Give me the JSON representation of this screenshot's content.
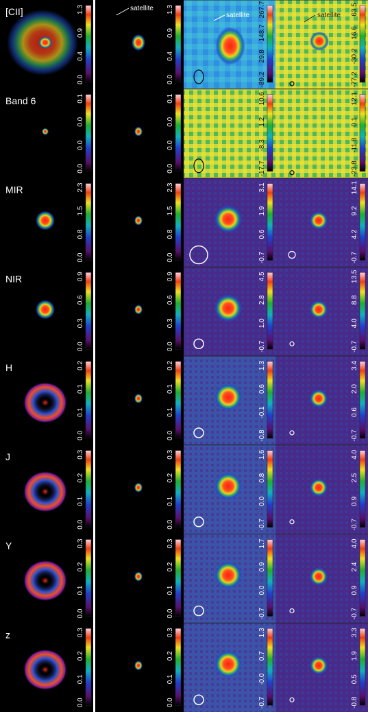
{
  "rows": [
    {
      "label": "[CII]",
      "colorbars": [
        [
          "0.0",
          "0.4",
          "0.9",
          "1.3"
        ],
        [
          "0.0",
          "0.4",
          "0.9",
          "1.3"
        ],
        [
          "-89.2",
          "29.8",
          "148.7",
          "267.7"
        ],
        [
          "-77.2",
          "-30.2",
          "16.6",
          "63.5"
        ]
      ]
    },
    {
      "label": "Band 6",
      "colorbars": [
        [
          "0.0",
          "0.0",
          "0.0",
          "0.1"
        ],
        [
          "0.0",
          "0.0",
          "0.0",
          "0.1"
        ],
        [
          "-17.7",
          "-8.3",
          "1.2",
          "10.6"
        ],
        [
          "-23.8",
          "-11.8",
          "0.1",
          "12.1"
        ]
      ]
    },
    {
      "label": "MIR",
      "colorbars": [
        [
          "0.0",
          "0.8",
          "1.5",
          "2.3"
        ],
        [
          "0.0",
          "0.8",
          "1.5",
          "2.3"
        ],
        [
          "-0.7",
          "0.6",
          "1.9",
          "3.1"
        ],
        [
          "-0.7",
          "4.2",
          "9.2",
          "14.1"
        ]
      ]
    },
    {
      "label": "NIR",
      "colorbars": [
        [
          "0.0",
          "0.3",
          "0.6",
          "0.9"
        ],
        [
          "0.0",
          "0.3",
          "0.6",
          "0.9"
        ],
        [
          "-0.7",
          "1.0",
          "2.8",
          "4.5"
        ],
        [
          "-0.7",
          "4.0",
          "8.8",
          "13.5"
        ]
      ]
    },
    {
      "label": "H",
      "colorbars": [
        [
          "0.0",
          "0.1",
          "0.1",
          "0.2"
        ],
        [
          "0.0",
          "0.1",
          "0.1",
          "0.2"
        ],
        [
          "-0.8",
          "-0.1",
          "0.6",
          "1.3"
        ],
        [
          "-0.7",
          "0.6",
          "2.0",
          "3.4"
        ]
      ]
    },
    {
      "label": "J",
      "colorbars": [
        [
          "0.0",
          "0.1",
          "0.2",
          "0.3"
        ],
        [
          "0.0",
          "0.1",
          "0.2",
          "0.3"
        ],
        [
          "-0.7",
          "0.0",
          "0.8",
          "1.6"
        ],
        [
          "-0.7",
          "0.9",
          "2.5",
          "4.0"
        ]
      ]
    },
    {
      "label": "Y",
      "colorbars": [
        [
          "0.0",
          "0.1",
          "0.2",
          "0.3"
        ],
        [
          "0.0",
          "0.1",
          "0.2",
          "0.3"
        ],
        [
          "-0.7",
          "0.0",
          "0.9",
          "1.7"
        ],
        [
          "-0.7",
          "0.9",
          "2.4",
          "4.0"
        ]
      ]
    },
    {
      "label": "z",
      "colorbars": [
        [
          "0.0",
          "0.1",
          "0.2",
          "0.3"
        ],
        [
          "0.0",
          "0.1",
          "0.2",
          "0.3"
        ],
        [
          "-0.7",
          "-0.0",
          "0.7",
          "1.3"
        ],
        [
          "-0.8",
          "0.5",
          "1.9",
          "3.3"
        ]
      ]
    }
  ],
  "annotations": [
    "satellite",
    "satellite",
    "satellite"
  ]
}
